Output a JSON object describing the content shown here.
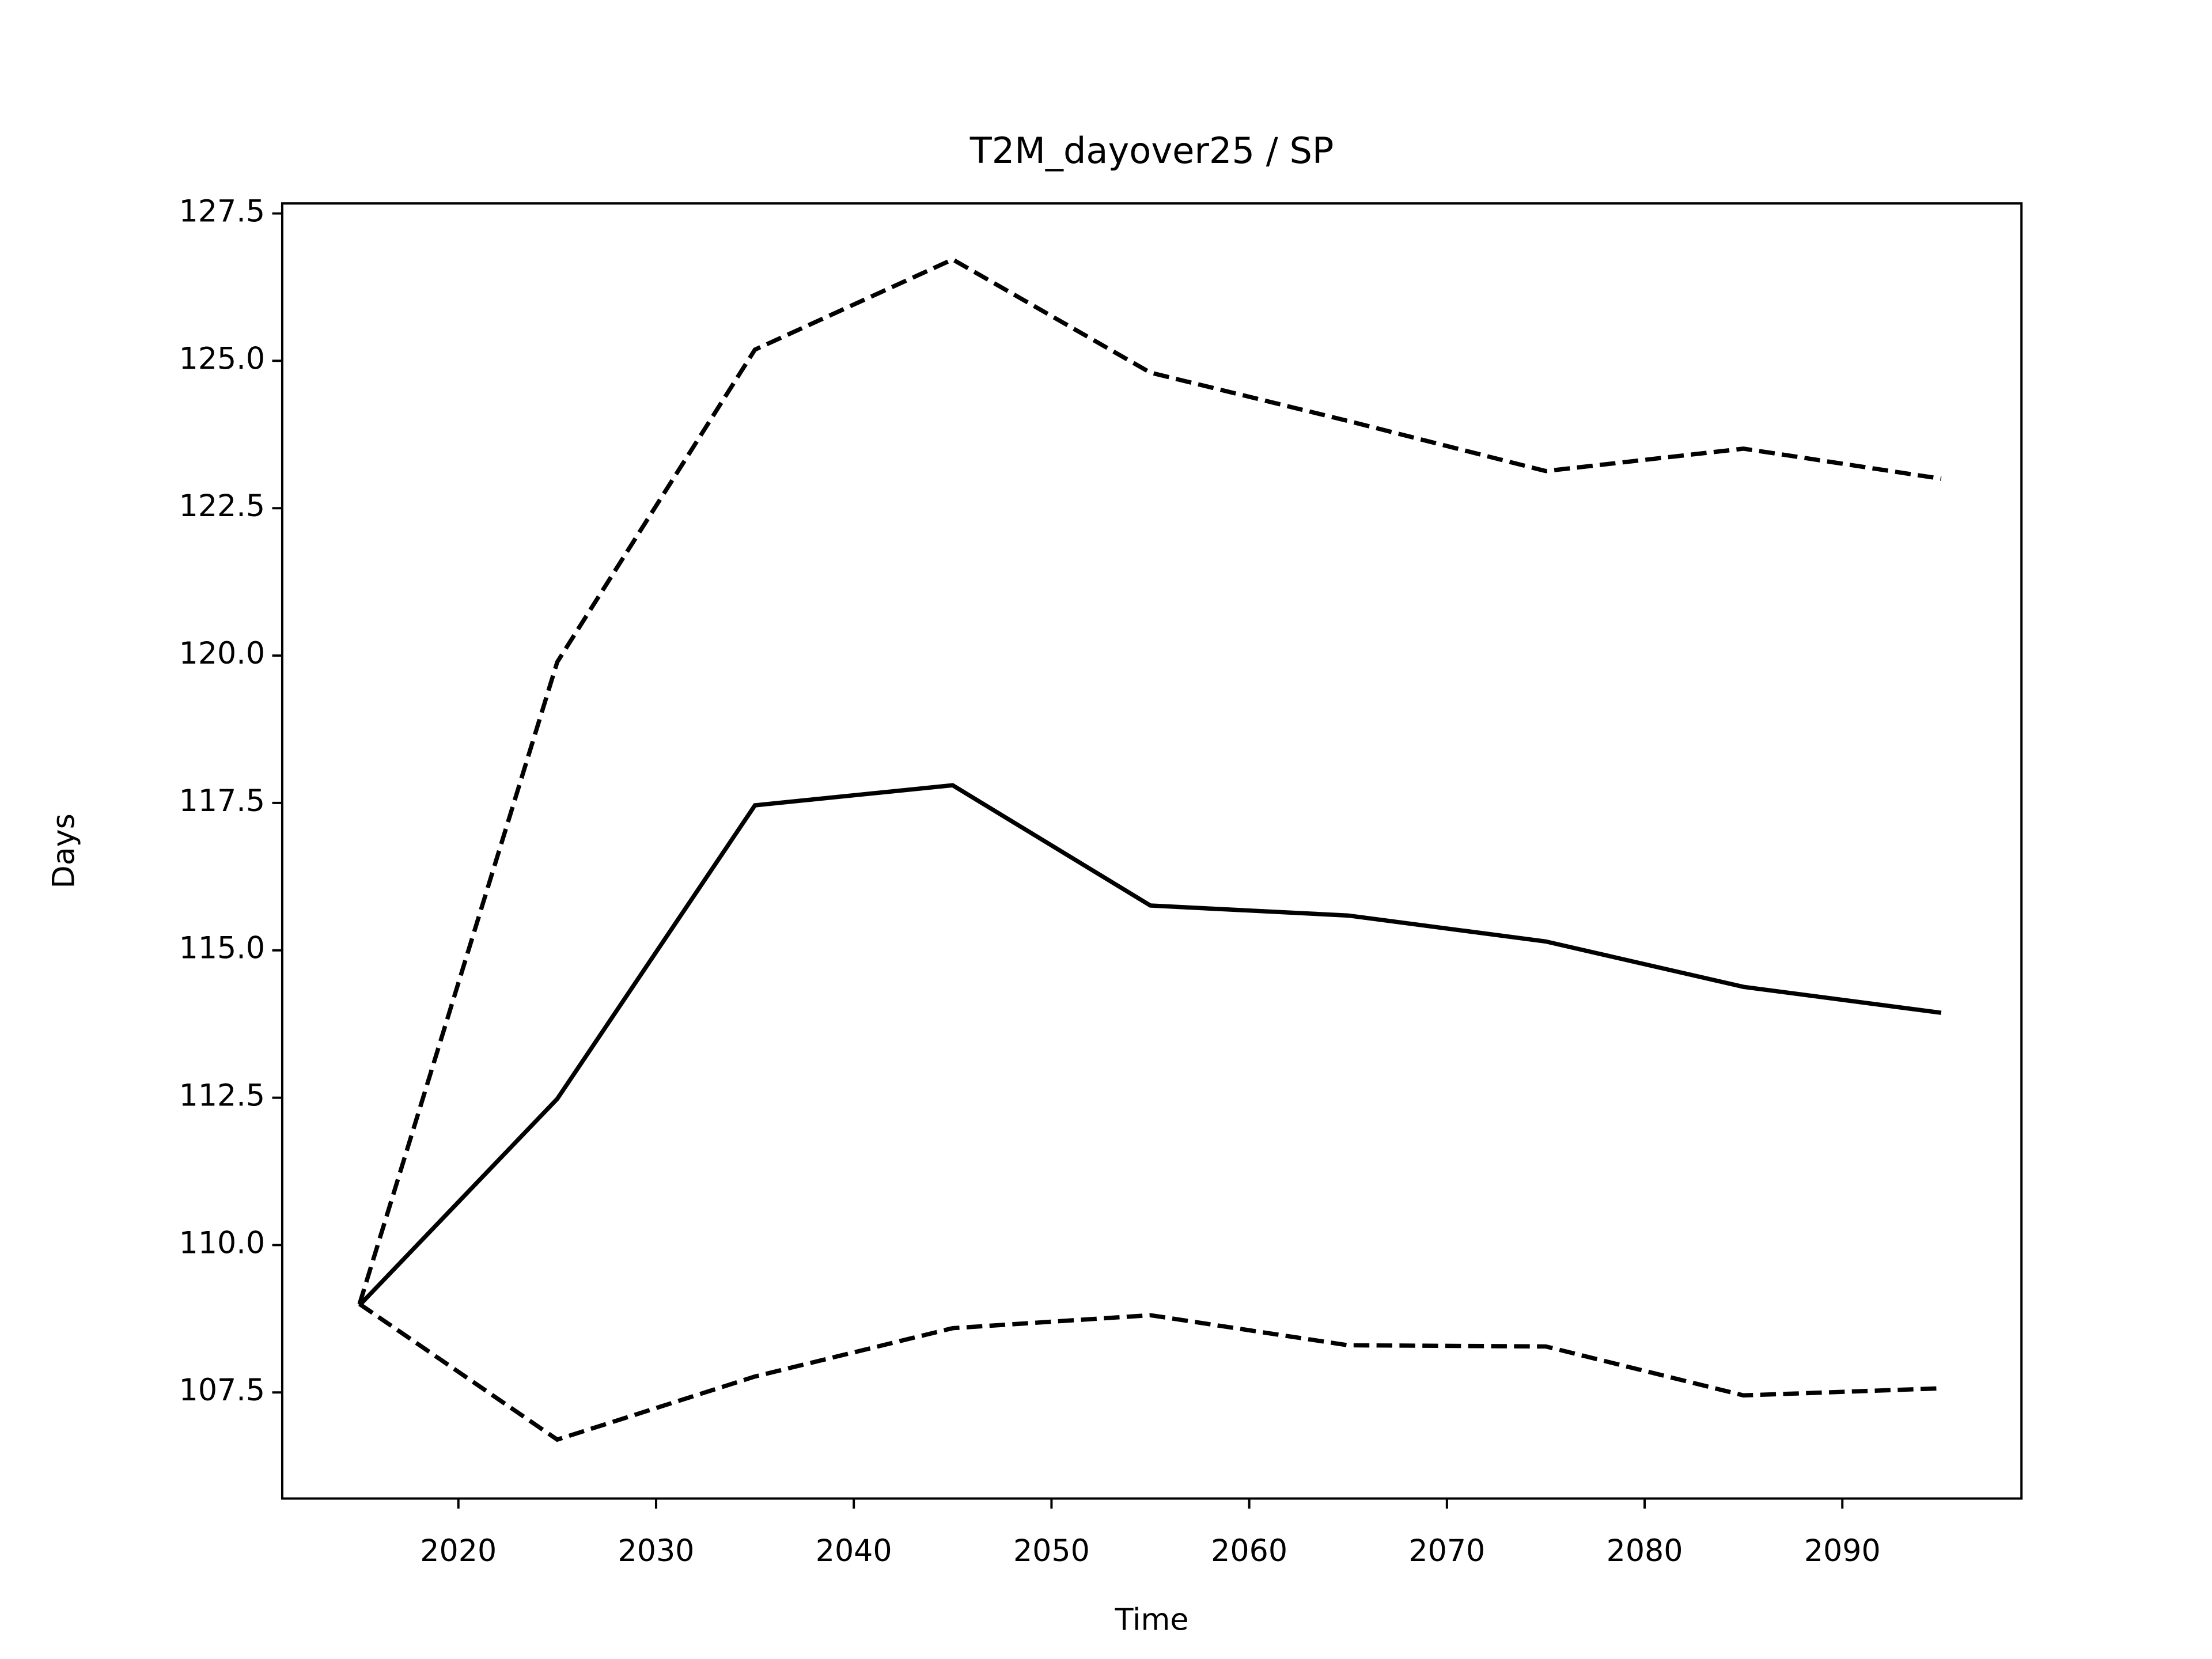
{
  "chart_data": {
    "type": "line",
    "title": "T2M_dayover25 / SP",
    "xlabel": "Time",
    "ylabel": "Days",
    "x": [
      2015,
      2025,
      2035,
      2045,
      2055,
      2065,
      2075,
      2085,
      2095
    ],
    "series": [
      {
        "color": "#000000",
        "linestyle": "dashed",
        "values": [
          109.0,
          119.89,
          125.19,
          126.72,
          124.8,
          123.98,
          123.13,
          123.51,
          123.0
        ]
      },
      {
        "color": "#000000",
        "linestyle": "solid",
        "values": [
          108.98,
          112.48,
          117.46,
          117.8,
          115.76,
          115.59,
          115.15,
          114.38,
          113.94
        ]
      },
      {
        "color": "#000000",
        "linestyle": "dashed",
        "values": [
          109.0,
          106.7,
          107.77,
          108.59,
          108.81,
          108.3,
          108.28,
          107.45,
          107.57
        ]
      }
    ],
    "xlim": [
      2011.09,
      2099.06
    ],
    "xticks": [
      2020,
      2030,
      2040,
      2050,
      2060,
      2070,
      2080,
      2090
    ],
    "ylim": [
      105.7,
      127.67
    ],
    "yticks": [
      {
        "value": 107.5,
        "label": "107.5"
      },
      {
        "value": 110,
        "label": "110.0"
      },
      {
        "value": 112.5,
        "label": "112.5"
      },
      {
        "value": 115,
        "label": "115.0"
      },
      {
        "value": 117.5,
        "label": "117.5"
      },
      {
        "value": 120,
        "label": "120.0"
      },
      {
        "value": 122.5,
        "label": "122.5"
      },
      {
        "value": 125,
        "label": "125.0"
      },
      {
        "value": 127.5,
        "label": "127.5"
      }
    ],
    "grid": false
  }
}
